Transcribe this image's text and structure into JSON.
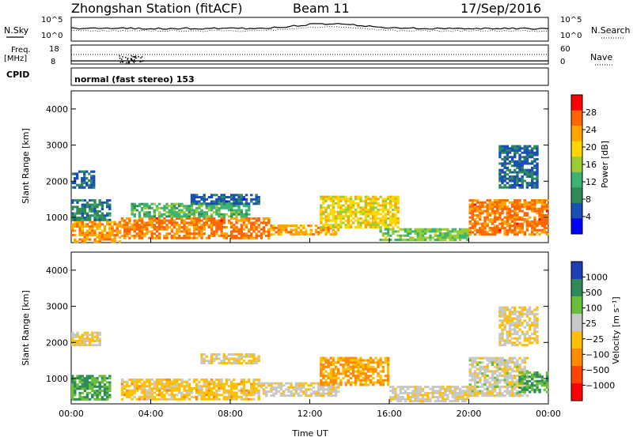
{
  "header": {
    "title": "Zhongshan Station (fitACF)",
    "beam": "Beam 11",
    "date": "17/Sep/2016"
  },
  "strips": {
    "nsky_label": "N.Sky",
    "nsearch_label": "N.Search",
    "noise_ticks_left": [
      "10^5",
      "10^0"
    ],
    "noise_ticks_right": [
      "10^5",
      "10^0"
    ],
    "freq_label": "Freq.",
    "freq_unit": "[MHz]",
    "freq_ticks": [
      "18",
      "8"
    ],
    "nave_label": "Nave",
    "nave_ticks": [
      "60",
      "0"
    ],
    "cpid_label": "CPID",
    "cpid_text": "normal (fast stereo) 153"
  },
  "colors": {
    "power_scale": [
      "#0000ff",
      "#1a4fb4",
      "#2e8b57",
      "#3cb371",
      "#9acd32",
      "#ffd700",
      "#ffa500",
      "#ff6600",
      "#ff0000"
    ],
    "velocity_scale": [
      "#1e3fb4",
      "#2e8b57",
      "#6abf3a",
      "#c8c8c8",
      "#ffc000",
      "#ff8c00",
      "#ff4500",
      "#ff0000"
    ]
  },
  "chart_data": [
    {
      "type": "heatmap",
      "panel": "power",
      "ylabel": "Slant Range [km]",
      "yticks": [
        "1000",
        "2000",
        "3000",
        "4000"
      ],
      "ylim": [
        300,
        4500
      ],
      "xlim": [
        "00:00",
        "00:00"
      ],
      "xticks": [
        "00:00",
        "04:00",
        "08:00",
        "12:00",
        "16:00",
        "20:00",
        "00:00"
      ],
      "colorbar_label": "Power [dB]",
      "colorbar_ticks": [
        "4",
        "8",
        "12",
        "16",
        "20",
        "24",
        "28"
      ],
      "colorbar_range": [
        0,
        30
      ],
      "regions": [
        {
          "t0": 0.0,
          "t1": 2.5,
          "r0": 300,
          "r1": 900,
          "level": 22
        },
        {
          "t0": 0.0,
          "t1": 2.0,
          "r0": 900,
          "r1": 1500,
          "level": 8
        },
        {
          "t0": 0.0,
          "t1": 1.2,
          "r0": 1800,
          "r1": 2300,
          "level": 6
        },
        {
          "t0": 2.5,
          "t1": 10.0,
          "r0": 400,
          "r1": 1000,
          "level": 24
        },
        {
          "t0": 3.0,
          "t1": 9.0,
          "r0": 1000,
          "r1": 1400,
          "level": 12
        },
        {
          "t0": 6.0,
          "t1": 9.5,
          "r0": 1350,
          "r1": 1650,
          "level": 6
        },
        {
          "t0": 10.0,
          "t1": 13.5,
          "r0": 500,
          "r1": 800,
          "level": 22
        },
        {
          "t0": 12.5,
          "t1": 16.5,
          "r0": 700,
          "r1": 1600,
          "level": 18
        },
        {
          "t0": 15.5,
          "t1": 20.0,
          "r0": 350,
          "r1": 700,
          "level": 14
        },
        {
          "t0": 20.0,
          "t1": 24.0,
          "r0": 500,
          "r1": 1500,
          "level": 24
        },
        {
          "t0": 21.5,
          "t1": 23.5,
          "r0": 1800,
          "r1": 3000,
          "level": 6
        }
      ]
    },
    {
      "type": "heatmap",
      "panel": "velocity",
      "ylabel": "Slant Range [km]",
      "yticks": [
        "1000",
        "2000",
        "3000",
        "4000"
      ],
      "ylim": [
        300,
        4500
      ],
      "xlim": [
        "00:00",
        "00:00"
      ],
      "xticks": [
        "00:00",
        "04:00",
        "08:00",
        "12:00",
        "16:00",
        "20:00",
        "00:00"
      ],
      "xlabel": "Time UT",
      "colorbar_label": "Velocity [m s⁻¹]",
      "colorbar_ticks": [
        "1000",
        "500",
        "100",
        "25",
        "−25",
        "−100",
        "−500",
        "−1000"
      ],
      "colorbar_range": [
        -1000,
        1000
      ],
      "regions": [
        {
          "t0": 0.0,
          "t1": 2.0,
          "r0": 400,
          "r1": 1100,
          "level": 500
        },
        {
          "t0": 0.0,
          "t1": 1.5,
          "r0": 1900,
          "r1": 2300,
          "level": 0
        },
        {
          "t0": 2.5,
          "t1": 9.5,
          "r0": 400,
          "r1": 1000,
          "level": -100
        },
        {
          "t0": 6.5,
          "t1": 9.5,
          "r0": 1400,
          "r1": 1700,
          "level": 0
        },
        {
          "t0": 9.5,
          "t1": 13.5,
          "r0": 500,
          "r1": 900,
          "level": 60
        },
        {
          "t0": 12.5,
          "t1": 16.0,
          "r0": 800,
          "r1": 1600,
          "level": -300
        },
        {
          "t0": 16.0,
          "t1": 20.0,
          "r0": 350,
          "r1": 800,
          "level": 60
        },
        {
          "t0": 20.0,
          "t1": 23.0,
          "r0": 500,
          "r1": 1600,
          "level": 100
        },
        {
          "t0": 22.5,
          "t1": 24.0,
          "r0": 600,
          "r1": 1200,
          "level": 500
        },
        {
          "t0": 21.5,
          "t1": 23.5,
          "r0": 1900,
          "r1": 3000,
          "level": 0
        }
      ]
    }
  ]
}
